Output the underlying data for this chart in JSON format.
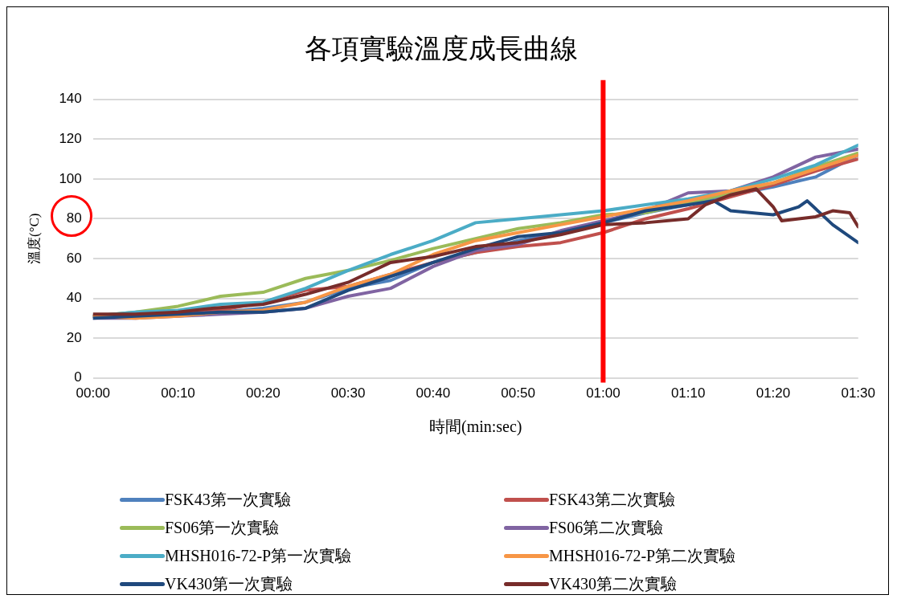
{
  "chart_data": {
    "type": "line",
    "title": "各項實驗溫度成長曲線",
    "xlabel": "時間(min:sec)",
    "ylabel": "溫度(°C)",
    "x": [
      0,
      5,
      10,
      15,
      20,
      25,
      30,
      35,
      40,
      45,
      50,
      55,
      60,
      65,
      70,
      75,
      80,
      85,
      90
    ],
    "xlim": [
      0,
      90
    ],
    "xticks": [
      {
        "value": 0,
        "label": "00:00"
      },
      {
        "value": 10,
        "label": "00:10"
      },
      {
        "value": 20,
        "label": "00:20"
      },
      {
        "value": 30,
        "label": "00:30"
      },
      {
        "value": 40,
        "label": "00:40"
      },
      {
        "value": 50,
        "label": "00:50"
      },
      {
        "value": 60,
        "label": "01:00"
      },
      {
        "value": 70,
        "label": "01:10"
      },
      {
        "value": 80,
        "label": "01:20"
      },
      {
        "value": 90,
        "label": "01:30"
      }
    ],
    "ylim": [
      0,
      140
    ],
    "yticks": [
      0,
      20,
      40,
      60,
      80,
      100,
      120,
      140
    ],
    "grid": "y",
    "legend": "bottom",
    "marker": "none",
    "line_style": "solid",
    "ref_lines": [
      {
        "axis": "x",
        "value": 60,
        "color": "#ff0000"
      }
    ],
    "series": [
      {
        "name": "FSK43第一次實驗",
        "color": "#4f81bd",
        "values": [
          31,
          32,
          32,
          33,
          35,
          38,
          45,
          49,
          58,
          63,
          69,
          73,
          78,
          83,
          87,
          92,
          96,
          101,
          112
        ]
      },
      {
        "name": "FSK43第二次實驗",
        "color": "#c0504d",
        "values": [
          31,
          31,
          32,
          34,
          38,
          44,
          46,
          52,
          58,
          63,
          66,
          68,
          73,
          80,
          85,
          91,
          97,
          104,
          110
        ]
      },
      {
        "name": "FS06第一次實驗",
        "color": "#9bbb59",
        "values": [
          31,
          33,
          36,
          41,
          43,
          50,
          54,
          59,
          65,
          70,
          75,
          78,
          82,
          83,
          88,
          93,
          98,
          106,
          113
        ]
      },
      {
        "name": "FS06第二次實驗",
        "color": "#8064a2",
        "values": [
          30,
          30,
          31,
          32,
          33,
          35,
          41,
          45,
          56,
          64,
          67,
          74,
          79,
          84,
          93,
          94,
          101,
          111,
          115
        ]
      },
      {
        "name": "MHSH016-72-P第一次實驗",
        "color": "#4bacc6",
        "values": [
          31,
          33,
          34,
          37,
          38,
          45,
          54,
          62,
          69,
          78,
          80,
          82,
          84,
          87,
          90,
          94,
          100,
          107,
          117
        ]
      },
      {
        "name": "MHSH016-72-P第二次實驗",
        "color": "#f79646",
        "values": [
          31,
          30,
          31,
          33,
          34,
          38,
          46,
          52,
          62,
          69,
          73,
          77,
          81,
          85,
          89,
          94,
          98,
          105,
          112
        ]
      },
      {
        "name": "VK430第一次實驗",
        "color": "#1f497d",
        "x": [
          0,
          5,
          10,
          15,
          20,
          25,
          30,
          35,
          40,
          45,
          50,
          55,
          60,
          65,
          70,
          73,
          75,
          80,
          83,
          84,
          87,
          90
        ],
        "values": [
          30,
          31,
          32,
          33,
          33,
          35,
          44,
          51,
          58,
          65,
          71,
          73,
          78,
          84,
          87,
          89,
          84,
          82,
          86,
          89,
          77,
          68
        ]
      },
      {
        "name": "VK430第二次實驗",
        "color": "#772c2a",
        "x": [
          0,
          5,
          10,
          14,
          20,
          25,
          30,
          35,
          40,
          45,
          50,
          55,
          60,
          65,
          70,
          72,
          75,
          78,
          80,
          81,
          85,
          87,
          89,
          90
        ],
        "values": [
          32,
          32,
          33,
          35,
          37,
          42,
          48,
          58,
          61,
          66,
          68,
          72,
          77,
          78,
          80,
          87,
          92,
          95,
          86,
          79,
          81,
          84,
          83,
          76
        ]
      }
    ]
  }
}
